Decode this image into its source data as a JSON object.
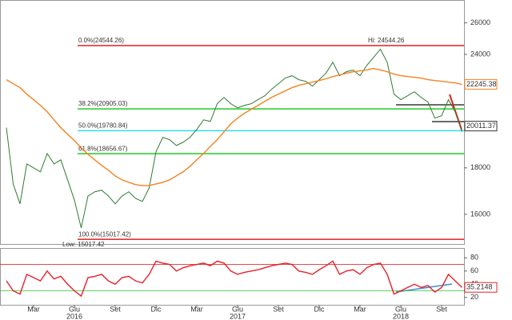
{
  "chart_data": [
    {
      "type": "line",
      "y_scale": "log",
      "ylim": [
        14840,
        27550
      ],
      "yticks": [
        16000,
        18000,
        24000,
        26000
      ],
      "series": [
        {
          "color": "#2e7d32",
          "values": [
            19930,
            17280,
            16430,
            18180,
            18000,
            17820,
            18670,
            18180,
            18370,
            17460,
            16590,
            15460,
            16760,
            16940,
            17010,
            16760,
            16430,
            16760,
            16940,
            16660,
            16530,
            17110,
            18750,
            19450,
            19330,
            19050,
            19210,
            19450,
            19840,
            20330,
            20250,
            21180,
            21520,
            21180,
            20960,
            21090,
            21180,
            21400,
            21610,
            21970,
            22280,
            22600,
            22740,
            22510,
            22420,
            22150,
            22510,
            22880,
            23530,
            22740,
            22970,
            23070,
            22740,
            23340,
            23820,
            24320,
            23530,
            21700,
            21400,
            21610,
            21830,
            21520,
            21270,
            20420,
            20540,
            21400,
            20750,
            19720
          ]
        },
        {
          "color": "#f5821f",
          "values": [
            22510,
            22280,
            22060,
            21700,
            21400,
            21090,
            20750,
            20330,
            19930,
            19600,
            19290,
            18940,
            18630,
            18370,
            18110,
            17890,
            17640,
            17460,
            17350,
            17250,
            17210,
            17210,
            17280,
            17350,
            17460,
            17640,
            17820,
            18070,
            18370,
            18670,
            19010,
            19330,
            19720,
            20130,
            20420,
            20670,
            20880,
            21090,
            21310,
            21520,
            21700,
            21880,
            22060,
            22190,
            22280,
            22370,
            22460,
            22560,
            22690,
            22780,
            22880,
            22970,
            23020,
            23070,
            23160,
            23070,
            22970,
            22830,
            22740,
            22690,
            22650,
            22600,
            22510,
            22460,
            22420,
            22370,
            22330,
            22240
          ]
        }
      ],
      "fib_levels": [
        {
          "value": 24544.26,
          "label": "0.0%(24544.26)",
          "color": "#e02020"
        },
        {
          "value": 20905.03,
          "label": "38.2%(20905.03)",
          "color": "#22cc22"
        },
        {
          "value": 19780.84,
          "label": "50.0%(19780.84)",
          "color": "#33ddee"
        },
        {
          "value": 18656.67,
          "label": "61.8%(18656.67)",
          "color": "#22cc22"
        },
        {
          "value": 15017.42,
          "label": "100.0%(15017.42)",
          "color": "#e02020"
        }
      ],
      "high_label": "Hi: 24544.26",
      "low_label": "Low: 15017.42",
      "price_tags": [
        {
          "value": 22245.38,
          "color": "#f5821f"
        },
        {
          "value": 20011.37,
          "color": "#333333"
        }
      ]
    },
    {
      "type": "line",
      "ylim": [
        8.75,
        93.75
      ],
      "yticks": [
        20,
        40,
        60,
        80
      ],
      "series": [
        {
          "color": "#e8202a",
          "values": [
            45,
            30,
            25,
            55,
            50,
            45,
            60,
            48,
            52,
            40,
            30,
            22,
            50,
            52,
            55,
            45,
            40,
            50,
            52,
            45,
            42,
            55,
            75,
            72,
            70,
            60,
            65,
            68,
            70,
            72,
            68,
            75,
            72,
            60,
            55,
            58,
            60,
            62,
            65,
            68,
            70,
            72,
            70,
            60,
            58,
            55,
            62,
            68,
            75,
            55,
            60,
            62,
            55,
            65,
            70,
            72,
            55,
            25,
            30,
            35,
            40,
            35,
            38,
            28,
            35,
            55,
            45,
            35.2148
          ]
        }
      ],
      "ref_lines": [
        {
          "value": 70,
          "color": "#e03030"
        },
        {
          "value": 30,
          "color": "#30c030"
        }
      ],
      "price_tags": [
        {
          "value": 35.2148,
          "color": "#e8202a"
        }
      ],
      "categories": [
        null,
        null,
        null,
        null,
        "Mar",
        null,
        null,
        null,
        null,
        null,
        "Giu",
        null,
        null,
        null,
        null,
        null,
        "Set",
        null,
        null,
        null,
        null,
        null,
        "Dic",
        null,
        null,
        null,
        null,
        null,
        "Mar",
        null,
        null,
        null,
        null,
        null,
        "Giu",
        null,
        null,
        null,
        null,
        null,
        "Set",
        null,
        null,
        null,
        null,
        null,
        "Dic",
        null,
        null,
        null,
        null,
        null,
        "Mar",
        null,
        null,
        null,
        null,
        null,
        "Giu",
        null,
        null,
        null,
        null,
        null,
        "Set",
        null,
        null,
        null
      ],
      "year_labels": [
        null,
        null,
        null,
        null,
        null,
        null,
        null,
        null,
        null,
        null,
        "2016",
        null,
        null,
        null,
        null,
        null,
        null,
        null,
        null,
        null,
        null,
        null,
        null,
        null,
        null,
        null,
        null,
        null,
        null,
        null,
        null,
        null,
        null,
        null,
        "2017",
        null,
        null,
        null,
        null,
        null,
        null,
        null,
        null,
        null,
        null,
        null,
        null,
        null,
        null,
        null,
        null,
        null,
        null,
        null,
        null,
        null,
        null,
        null,
        "2018",
        null,
        null,
        null,
        null,
        null,
        null,
        null,
        null,
        null
      ]
    }
  ]
}
